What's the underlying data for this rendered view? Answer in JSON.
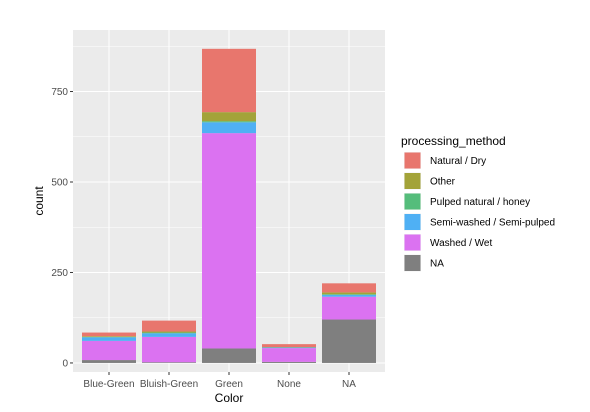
{
  "chart_data": {
    "type": "bar",
    "stacked": true,
    "xlabel": "Color",
    "ylabel": "count",
    "categories": [
      "Blue-Green",
      "Bluish-Green",
      "Green",
      "None",
      "NA"
    ],
    "ylim": [
      -25,
      920
    ],
    "yticks": [
      0,
      250,
      500,
      750
    ],
    "grid": true,
    "legend_position": "right",
    "legend_title": "processing_method",
    "series": [
      {
        "name": "Natural / Dry",
        "color": "#E8766D",
        "values": [
          10,
          30,
          175,
          8,
          25
        ]
      },
      {
        "name": "Other",
        "color": "#A3A339",
        "values": [
          2,
          3,
          25,
          1,
          5
        ]
      },
      {
        "name": "Pulped natural / honey",
        "color": "#55BD7B",
        "values": [
          1,
          2,
          3,
          0,
          2
        ]
      },
      {
        "name": "Semi-washed / Semi-pulped",
        "color": "#4FB0F4",
        "values": [
          10,
          10,
          30,
          2,
          5
        ]
      },
      {
        "name": "Washed / Wet",
        "color": "#DB72F1",
        "values": [
          53,
          70,
          595,
          38,
          63
        ]
      },
      {
        "name": "NA",
        "color": "#7F7F7F",
        "values": [
          8,
          2,
          40,
          3,
          120
        ]
      }
    ]
  }
}
